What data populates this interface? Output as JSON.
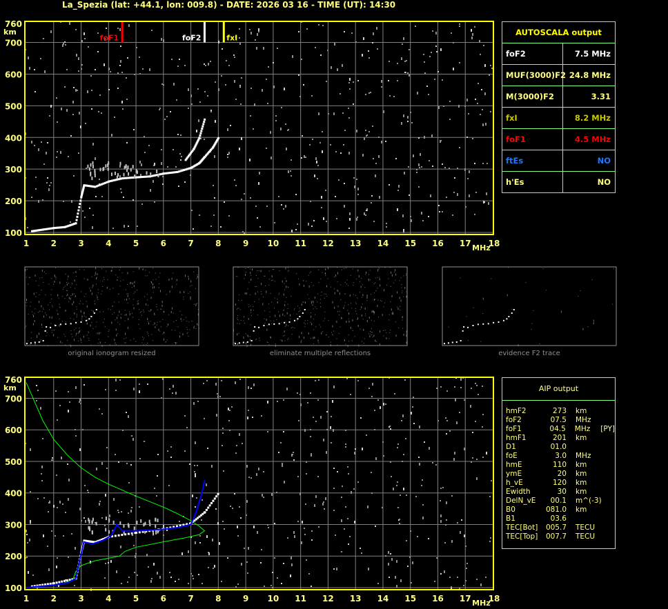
{
  "header": {
    "title": "La_Spezia (lat: +44.1, lon: 009.8) - DATE: 2026 03 16 - TIME (UT): 14:30"
  },
  "colors": {
    "axis": "#ffff00",
    "grid": "#808080",
    "table_border": "#80ff80",
    "foF1": "#ff0000",
    "foF2": "#ffffff",
    "fxI": "#ffff00",
    "aip_profile": "#00ff00",
    "aip_trace": "#0000ff"
  },
  "autoscala": {
    "title": "AUTOSCALA output",
    "rows": [
      {
        "label": "foF2",
        "value": "7.5 MHz",
        "color": "#ffffff"
      },
      {
        "label": "MUF(3000)F2",
        "value": "24.8 MHz",
        "color": "#ffff80"
      },
      {
        "label": "M(3000)F2",
        "value": "3.31",
        "color": "#ffff80"
      },
      {
        "label": "fxI",
        "value": "8.2 MHz",
        "color": "#c8c800"
      },
      {
        "label": "foF1",
        "value": "4.5 MHz",
        "color": "#ff0000"
      },
      {
        "label": "ftEs",
        "value": "NO",
        "color": "#1e78ff"
      },
      {
        "label": "h'Es",
        "value": "NO",
        "color": "#ffff80"
      }
    ]
  },
  "aip": {
    "title": "AIP output",
    "rows": [
      [
        "hmF2",
        "273",
        "km",
        ""
      ],
      [
        "foF2",
        "07.5",
        "MHz",
        ""
      ],
      [
        "foF1",
        "04.5",
        "MHz",
        "[PY]"
      ],
      [
        "hmF1",
        "201",
        "km",
        ""
      ],
      [
        "D1",
        "01.0",
        "",
        ""
      ],
      [
        "foE",
        "3.0",
        "MHz",
        ""
      ],
      [
        "hmE",
        "110",
        "km",
        ""
      ],
      [
        "ymE",
        "20",
        "km",
        ""
      ],
      [
        "h_vE",
        "120",
        "km",
        ""
      ],
      [
        "Ewidth",
        "30",
        "km",
        ""
      ],
      [
        "DelN_vE",
        "00.1",
        "m^(-3)",
        ""
      ],
      [
        "B0",
        "081.0",
        "km",
        ""
      ],
      [
        "B1",
        "03.6",
        "",
        ""
      ],
      [
        "TEC[Bot]",
        "005.7",
        "TECU",
        ""
      ],
      [
        "TEC[Top]",
        "007.7",
        "TECU",
        ""
      ]
    ]
  },
  "captions": [
    "original ionogram resized",
    "eliminate multiple reflections",
    "evidence F2 trace"
  ],
  "chart_data": [
    {
      "type": "scatter",
      "title": "",
      "xlabel": "MHz",
      "ylabel": "km",
      "xlim": [
        1,
        18
      ],
      "ylim": [
        100,
        760
      ],
      "xticks": [
        "1",
        "2",
        "3",
        "4",
        "5",
        "6",
        "7",
        "8",
        "9",
        "10",
        "11",
        "12",
        "13",
        "14",
        "15",
        "16",
        "17",
        "18"
      ],
      "yticks": [
        "100",
        "200",
        "300",
        "400",
        "500",
        "600",
        "700",
        "760"
      ],
      "grid": true,
      "markers": [
        {
          "name": "foF1",
          "x": 4.5,
          "color": "#ff0000"
        },
        {
          "name": "foF2",
          "x": 7.5,
          "color": "#ffffff"
        },
        {
          "name": "fxI",
          "x": 8.2,
          "color": "#ffff00"
        }
      ],
      "trace_o": [
        [
          1.2,
          105
        ],
        [
          1.6,
          110
        ],
        [
          2,
          115
        ],
        [
          2.4,
          118
        ],
        [
          2.8,
          130
        ],
        [
          3,
          215
        ],
        [
          3.1,
          250
        ],
        [
          3.5,
          245
        ],
        [
          4,
          262
        ],
        [
          4.5,
          272
        ],
        [
          5,
          275
        ],
        [
          5.5,
          278
        ],
        [
          6,
          287
        ],
        [
          6.5,
          292
        ],
        [
          7,
          305
        ],
        [
          7.3,
          320
        ],
        [
          7.5,
          340
        ],
        [
          7.8,
          370
        ],
        [
          8,
          400
        ]
      ],
      "trace_x": [
        [
          6.8,
          330
        ],
        [
          7.1,
          365
        ],
        [
          7.3,
          400
        ],
        [
          7.5,
          460
        ]
      ]
    },
    {
      "type": "line",
      "title": "",
      "xlabel": "MHz",
      "ylabel": "km",
      "xlim": [
        1,
        18
      ],
      "ylim": [
        100,
        760
      ],
      "grid": true,
      "series": [
        {
          "color": "#00ff00",
          "points": [
            [
              1,
              750
            ],
            [
              1.3,
              690
            ],
            [
              1.6,
              630
            ],
            [
              2,
              570
            ],
            [
              2.5,
              520
            ],
            [
              3,
              480
            ],
            [
              3.5,
              450
            ],
            [
              4,
              428
            ],
            [
              5,
              390
            ],
            [
              6,
              355
            ],
            [
              6.5,
              335
            ],
            [
              7,
              312
            ],
            [
              7.3,
              295
            ],
            [
              7.5,
              280
            ],
            [
              7.3,
              268
            ],
            [
              6.8,
              258
            ],
            [
              6,
              245
            ],
            [
              5,
              228
            ],
            [
              4.6,
              215
            ],
            [
              4.4,
              200
            ],
            [
              3.5,
              185
            ],
            [
              3,
              170
            ],
            [
              2.8,
              150
            ],
            [
              2.7,
              125
            ],
            [
              2.3,
              112
            ],
            [
              1.5,
              104
            ],
            [
              1,
              100
            ]
          ]
        },
        {
          "color": "#0000ff",
          "points": [
            [
              1,
              100
            ],
            [
              1.5,
              104
            ],
            [
              2,
              108
            ],
            [
              2.5,
              115
            ],
            [
              2.8,
              128
            ],
            [
              3.1,
              245
            ],
            [
              3.4,
              238
            ],
            [
              3.8,
              250
            ],
            [
              4.1,
              265
            ],
            [
              4.3,
              300
            ],
            [
              4.5,
              280
            ],
            [
              5,
              280
            ],
            [
              5.5,
              282
            ],
            [
              6,
              285
            ],
            [
              6.5,
              290
            ],
            [
              7,
              300
            ],
            [
              7.2,
              340
            ],
            [
              7.4,
              400
            ],
            [
              7.5,
              440
            ]
          ]
        }
      ],
      "trace_o": [
        [
          1.2,
          105
        ],
        [
          2,
          115
        ],
        [
          2.8,
          130
        ],
        [
          3,
          215
        ],
        [
          3.1,
          250
        ],
        [
          3.5,
          245
        ],
        [
          4,
          262
        ],
        [
          5,
          275
        ],
        [
          6,
          287
        ],
        [
          7,
          305
        ],
        [
          7.5,
          340
        ],
        [
          8,
          400
        ]
      ]
    }
  ]
}
